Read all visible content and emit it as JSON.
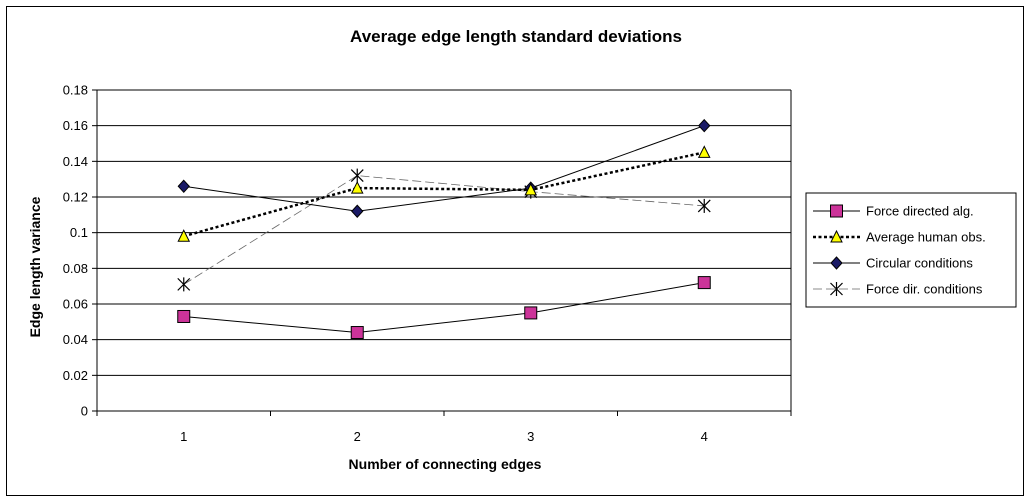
{
  "chart_data": {
    "type": "line",
    "title": "Average edge length standard deviations",
    "xlabel": "Number of connecting edges",
    "ylabel": "Edge length variance",
    "categories": [
      "1",
      "2",
      "3",
      "4"
    ],
    "ylim": [
      0,
      0.18
    ],
    "yticks": [
      "0",
      "0.02",
      "0.04",
      "0.06",
      "0.08",
      "0.1",
      "0.12",
      "0.14",
      "0.16",
      "0.18"
    ],
    "grid": "horizontal",
    "legend_position": "right",
    "series": [
      {
        "name": "Force directed alg.",
        "values": [
          0.053,
          0.044,
          0.055,
          0.072
        ],
        "color": "#cc3399",
        "marker": "square",
        "line": "solid"
      },
      {
        "name": "Average human obs.",
        "values": [
          0.098,
          0.125,
          0.124,
          0.145
        ],
        "color": "#ffff00",
        "marker": "triangle",
        "line": "dotted"
      },
      {
        "name": "Circular conditions",
        "values": [
          0.126,
          0.112,
          0.125,
          0.16
        ],
        "color": "#1a1a66",
        "marker": "diamond",
        "line": "solid"
      },
      {
        "name": "Force dir. conditions",
        "values": [
          0.071,
          0.132,
          0.123,
          0.115
        ],
        "color": "#000000",
        "marker": "star",
        "line": "dashed"
      }
    ]
  }
}
